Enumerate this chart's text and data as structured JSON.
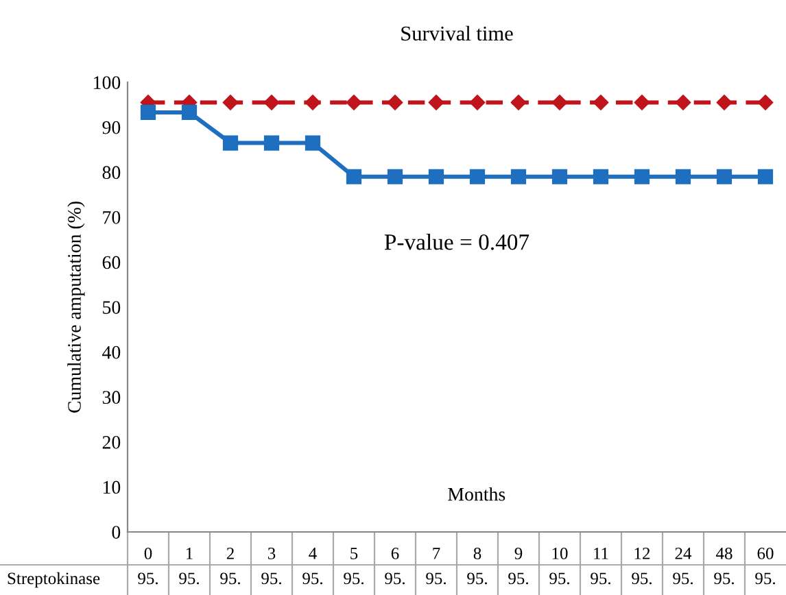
{
  "chart_data": {
    "type": "line",
    "title": "Survival time",
    "xlabel": "Months",
    "ylabel": "Cumulative amputation (%)",
    "categories": [
      "0",
      "1",
      "2",
      "3",
      "4",
      "5",
      "6",
      "7",
      "8",
      "9",
      "10",
      "11",
      "12",
      "24",
      "48",
      "60"
    ],
    "series": [
      {
        "name": "Streptokinase",
        "color": "#c0141c",
        "marker": "diamond",
        "line_style": "dashed",
        "values": [
          95.5,
          95.5,
          95.5,
          95.5,
          95.5,
          95.5,
          95.5,
          95.5,
          95.5,
          95.5,
          95.5,
          95.5,
          95.5,
          95.5,
          95.5,
          95.5
        ],
        "value_labels": [
          "95.",
          "95.",
          "95.",
          "95.",
          "95.",
          "95.",
          "95.",
          "95.",
          "95.",
          "95.",
          "95.",
          "95.",
          "95.",
          "95.",
          "95.",
          "95."
        ]
      },
      {
        "color": "#1f6fc0",
        "marker": "square",
        "line_style": "solid",
        "values": [
          93.3,
          93.3,
          86.5,
          86.5,
          86.5,
          79,
          79,
          79,
          79,
          79,
          79,
          79,
          79,
          79,
          79,
          79
        ]
      }
    ],
    "ylim": [
      0,
      100
    ],
    "yticks": [
      0,
      10,
      20,
      30,
      40,
      50,
      60,
      70,
      80,
      90,
      100
    ],
    "grid": false,
    "legend": false,
    "annotations": [
      "P-value = 0.407"
    ]
  }
}
